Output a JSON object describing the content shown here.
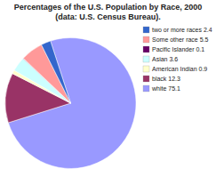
{
  "chart_data": {
    "type": "pie",
    "title": "Percentages of the U.S. Population by Race, 2000\n(data: U.S. Census Bureau).",
    "categories": [
      "white 75.1",
      "black 12.3",
      "American Indian 0.9",
      "Asian 3.6",
      "Pacific Islander 0.1",
      "Some other race 5.5",
      "two or more races 2.4"
    ],
    "values": [
      75.1,
      12.3,
      0.9,
      3.6,
      0.1,
      5.5,
      2.4
    ],
    "colors": [
      "#9999ff",
      "#993366",
      "#ffffcc",
      "#ccffff",
      "#660066",
      "#ff9999",
      "#3366cc"
    ],
    "legend": "upper right"
  }
}
